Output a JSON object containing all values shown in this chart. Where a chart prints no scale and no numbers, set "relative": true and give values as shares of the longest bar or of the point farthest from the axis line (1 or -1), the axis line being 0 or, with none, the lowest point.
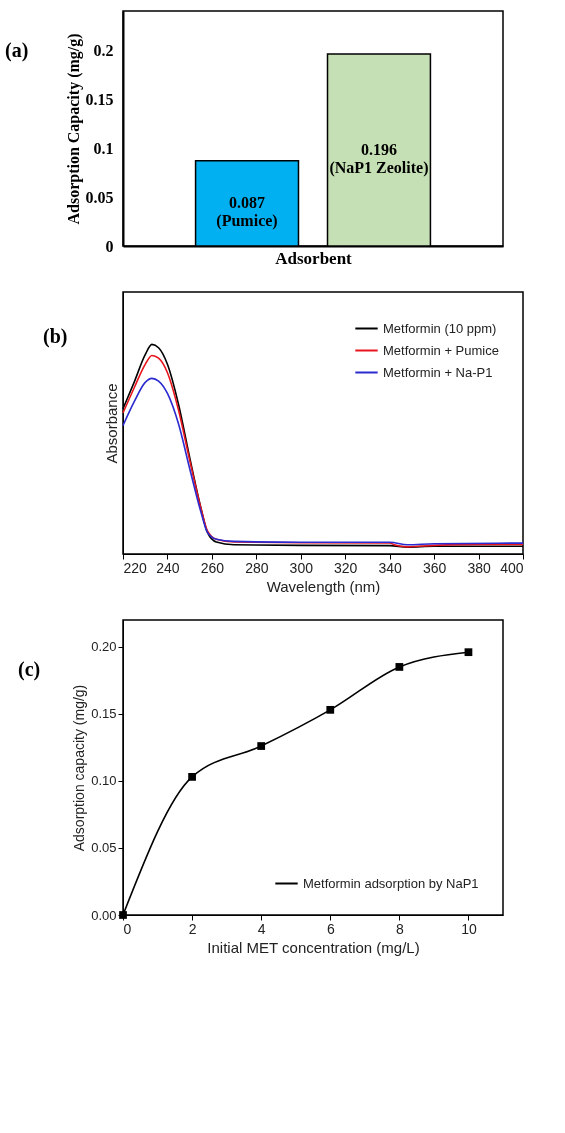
{
  "chart_data": [
    {
      "type": "bar",
      "annotations": [
        "(a)"
      ],
      "ylabel": "Adsorption Capacity (mg/g)",
      "xlabel": "Adsorbent",
      "categories": [
        null,
        null
      ],
      "values": [
        0.087,
        0.196
      ],
      "colors": [
        "#00b0f0",
        "#c5e0b4"
      ],
      "value_labels": [
        "0.087\n(Pumice)",
        "0.196\n(NaP1 Zeolite)"
      ],
      "ylim": [
        0,
        0.24
      ],
      "yticks": [
        0,
        0.05,
        0.1,
        0.15,
        0.2
      ],
      "tick_labels": "y",
      "grid": false
    },
    {
      "type": "line",
      "annotations": [
        "(b)"
      ],
      "xlabel": "Wavelength (nm)",
      "ylabel": "Absorbance",
      "relative": true,
      "xlim": [
        220,
        400
      ],
      "xticks": [
        220,
        240,
        260,
        280,
        300,
        320,
        340,
        360,
        380,
        400
      ],
      "grid": false,
      "legend": "top right",
      "marker": "none",
      "line_style": "solid",
      "series": [
        {
          "name": "Metformin (10 ppm)",
          "color": "#000000",
          "x": [
            220,
            225,
            230,
            233,
            236,
            240,
            245,
            250,
            255,
            258,
            262,
            270,
            300,
            340,
            348,
            360,
            400
          ],
          "values": [
            0.693,
            0.819,
            0.951,
            1.0,
            0.984,
            0.905,
            0.713,
            0.461,
            0.222,
            0.103,
            0.057,
            0.044,
            0.041,
            0.04,
            0.033,
            0.037,
            0.037
          ]
        },
        {
          "name": "Metformin + Pumice",
          "color": "#e8141c",
          "x": [
            220,
            225,
            230,
            233,
            236,
            240,
            245,
            250,
            255,
            258,
            262,
            270,
            300,
            340,
            342,
            348,
            360,
            380,
            400
          ],
          "values": [
            0.673,
            0.792,
            0.905,
            0.947,
            0.934,
            0.865,
            0.686,
            0.448,
            0.222,
            0.11,
            0.07,
            0.057,
            0.054,
            0.053,
            0.044,
            0.034,
            0.041,
            0.046,
            0.046
          ]
        },
        {
          "name": "Metformin + Na-P1",
          "color": "#2a2ad0",
          "x": [
            220,
            225,
            230,
            233,
            236,
            240,
            245,
            250,
            255,
            258,
            262,
            270,
            300,
            340,
            348,
            360,
            400
          ],
          "values": [
            0.613,
            0.726,
            0.819,
            0.838,
            0.825,
            0.766,
            0.62,
            0.408,
            0.203,
            0.103,
            0.07,
            0.06,
            0.056,
            0.056,
            0.044,
            0.049,
            0.052
          ]
        }
      ]
    },
    {
      "type": "line",
      "annotations": [
        "(c)"
      ],
      "xlabel": "Initial MET concentration (mg/L)",
      "ylabel": "Adsorption capacity (mg/g)",
      "xlim": [
        0,
        11
      ],
      "xticks": [
        0,
        2,
        4,
        6,
        8,
        10
      ],
      "ylim": [
        0,
        0.22
      ],
      "yticks": [
        {
          "value": 0,
          "label": "0.00"
        },
        {
          "value": 0.05,
          "label": "0.05"
        },
        {
          "value": 0.1,
          "label": "0.10"
        },
        {
          "value": 0.15,
          "label": "0.15"
        },
        {
          "value": 0.2,
          "label": "0.20"
        }
      ],
      "grid": false,
      "legend": "bottom right",
      "marker": "square",
      "line_style": "solid",
      "series": [
        {
          "name": "Metformin adsorption by NaP1",
          "color": "#000000",
          "x": [
            0,
            2,
            4,
            6,
            8,
            10
          ],
          "values": [
            0,
            0.103,
            0.126,
            0.153,
            0.185,
            0.196
          ]
        }
      ]
    }
  ]
}
